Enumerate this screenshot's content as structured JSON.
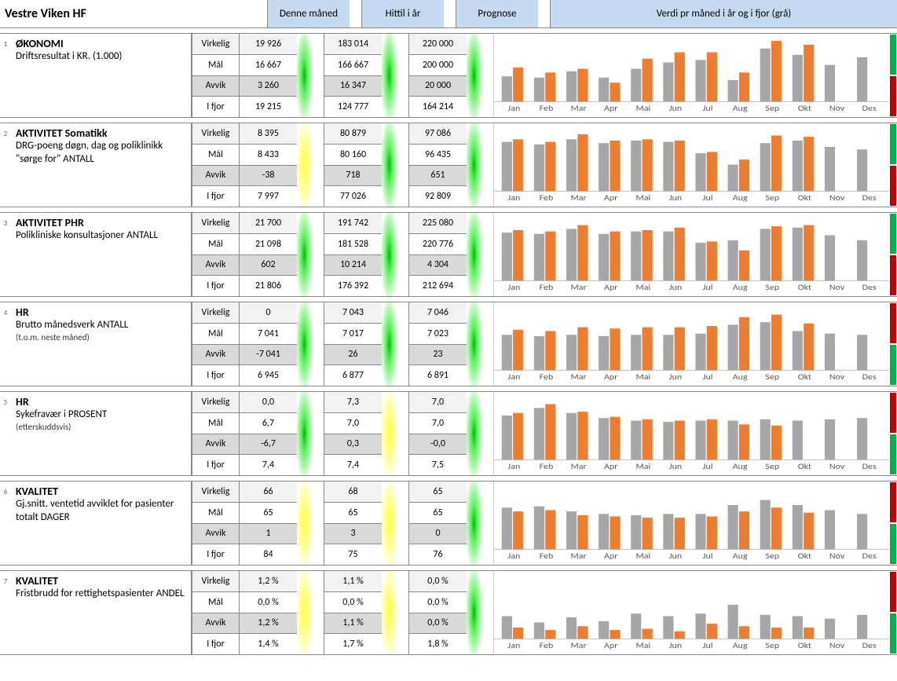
{
  "title": "Vestre Viken HF",
  "columns": {
    "month": "Denne måned",
    "year": "Hittil i år",
    "prognosis": "Prognose",
    "chart": "Verdi pr måned i år og i fjor (grå)"
  },
  "row_labels": {
    "virkelig": "Virkelig",
    "maal": "Mål",
    "avvik": "Avvik",
    "ifjor": "I fjor"
  },
  "chart_style": {
    "months": [
      "Jan",
      "Feb",
      "Mar",
      "Apr",
      "Mai",
      "Jun",
      "Jul",
      "Aug",
      "Sep",
      "Okt",
      "Nov",
      "Des"
    ],
    "bar_color_current": "#ed7d31",
    "bar_color_last": "#a6a6a6",
    "axis_color": "#bfbfbf",
    "label_color": "#595959",
    "label_fontsize": 10
  },
  "kpis": [
    {
      "num": "1",
      "title": "ØKONOMI",
      "subtitle": "Driftsresultat i KR. (1.000)",
      "sub2": "",
      "month": {
        "virkelig": "19 926",
        "maal": "16 667",
        "avvik": "3 260",
        "ifjor": "19 215",
        "status": "green"
      },
      "year": {
        "virkelig": "183 014",
        "maal": "166 667",
        "avvik": "16 347",
        "ifjor": "124 777",
        "status": "green"
      },
      "prognosis": {
        "virkelig": "220 000",
        "maal": "200 000",
        "avvik": "20 000",
        "ifjor": "164 214",
        "status": "green"
      },
      "flags": [
        "green",
        "red"
      ],
      "chart": {
        "last": [
          40,
          38,
          48,
          38,
          52,
          62,
          66,
          34,
          84,
          74,
          58,
          70
        ],
        "current": [
          54,
          46,
          52,
          30,
          68,
          78,
          78,
          46,
          96,
          90,
          0,
          0
        ]
      }
    },
    {
      "num": "2",
      "title": "AKTIVITET Somatikk",
      "subtitle": "DRG-poeng døgn, dag og poliklinikk \"sørge for\" ANTALL",
      "sub2": "",
      "month": {
        "virkelig": "8 395",
        "maal": "8 433",
        "avvik": "-38",
        "ifjor": "7 997",
        "status": "yellow"
      },
      "year": {
        "virkelig": "80 879",
        "maal": "80 160",
        "avvik": "718",
        "ifjor": "77 026",
        "status": "green"
      },
      "prognosis": {
        "virkelig": "97 086",
        "maal": "96 435",
        "avvik": "651",
        "ifjor": "92 809",
        "status": "green"
      },
      "flags": [
        "green",
        "red"
      ],
      "chart": {
        "last": [
          78,
          74,
          82,
          76,
          80,
          78,
          60,
          42,
          76,
          80,
          70,
          66
        ],
        "current": [
          82,
          78,
          90,
          80,
          82,
          80,
          62,
          50,
          88,
          86,
          0,
          0
        ]
      }
    },
    {
      "num": "3",
      "title": "AKTIVITET PHR",
      "subtitle": "Polikliniske konsultasjoner ANTALL",
      "sub2": "",
      "month": {
        "virkelig": "21 700",
        "maal": "21 098",
        "avvik": "602",
        "ifjor": "21 806",
        "status": "green"
      },
      "year": {
        "virkelig": "191 742",
        "maal": "181 528",
        "avvik": "10 214",
        "ifjor": "176 392",
        "status": "green"
      },
      "prognosis": {
        "virkelig": "225 080",
        "maal": "220 776",
        "avvik": "4 304",
        "ifjor": "212 694",
        "status": "green"
      },
      "flags": [
        "green",
        "red"
      ],
      "chart": {
        "last": [
          76,
          74,
          82,
          74,
          78,
          78,
          60,
          64,
          82,
          84,
          72,
          64
        ],
        "current": [
          80,
          78,
          88,
          78,
          80,
          84,
          62,
          48,
          86,
          88,
          0,
          0
        ]
      }
    },
    {
      "num": "4",
      "title": "HR",
      "subtitle": "Brutto månedsverk ANTALL",
      "sub2": "(t.o.m. neste måned)",
      "month": {
        "virkelig": "0",
        "maal": "7 041",
        "avvik": "-7 041",
        "ifjor": "6 945",
        "status": "green"
      },
      "year": {
        "virkelig": "7 043",
        "maal": "7 017",
        "avvik": "26",
        "ifjor": "6 877",
        "status": "green"
      },
      "prognosis": {
        "virkelig": "7 046",
        "maal": "7 023",
        "avvik": "23",
        "ifjor": "6 891",
        "status": "green"
      },
      "flags": [
        "red",
        "green"
      ],
      "chart": {
        "last": [
          56,
          54,
          56,
          54,
          56,
          56,
          58,
          72,
          76,
          62,
          58,
          56
        ],
        "current": [
          64,
          62,
          68,
          66,
          68,
          68,
          70,
          84,
          88,
          74,
          0,
          0
        ]
      }
    },
    {
      "num": "5",
      "title": "HR",
      "subtitle": "Sykefravær i PROSENT",
      "sub2": "(etterskuddsvis)",
      "month": {
        "virkelig": "0,0",
        "maal": "6,7",
        "avvik": "-6,7",
        "ifjor": "7,4",
        "status": "green"
      },
      "year": {
        "virkelig": "7,3",
        "maal": "7,0",
        "avvik": "0,3",
        "ifjor": "7,4",
        "status": "yellow"
      },
      "prognosis": {
        "virkelig": "7,0",
        "maal": "7,0",
        "avvik": "-0,0",
        "ifjor": "7,5",
        "status": "green"
      },
      "flags": [
        "red",
        "green"
      ],
      "chart": {
        "last": [
          70,
          82,
          74,
          66,
          62,
          60,
          62,
          62,
          64,
          62,
          64,
          66
        ],
        "current": [
          74,
          88,
          76,
          68,
          64,
          62,
          64,
          56,
          54,
          0,
          0,
          0
        ]
      }
    },
    {
      "num": "6",
      "title": "KVALITET",
      "subtitle": "Gj.snitt. ventetid avviklet for pasienter totalt DAGER",
      "sub2": "",
      "month": {
        "virkelig": "66",
        "maal": "65",
        "avvik": "1",
        "ifjor": "84",
        "status": "yellow"
      },
      "year": {
        "virkelig": "68",
        "maal": "65",
        "avvik": "3",
        "ifjor": "75",
        "status": "yellow"
      },
      "prognosis": {
        "virkelig": "65",
        "maal": "65",
        "avvik": "0",
        "ifjor": "76",
        "status": "green"
      },
      "flags": [
        "red",
        "green"
      ],
      "chart": {
        "last": [
          66,
          68,
          60,
          56,
          54,
          56,
          56,
          70,
          78,
          70,
          62,
          56
        ],
        "current": [
          60,
          62,
          54,
          52,
          50,
          50,
          52,
          60,
          66,
          58,
          0,
          0
        ]
      }
    },
    {
      "num": "7",
      "title": "KVALITET",
      "subtitle": "Fristbrudd for rettighetspasienter ANDEL",
      "sub2": "",
      "month": {
        "virkelig": "1,2 %",
        "maal": "0,0 %",
        "avvik": "1,2 %",
        "ifjor": "1,4 %",
        "status": "yellow"
      },
      "year": {
        "virkelig": "1,1 %",
        "maal": "0,0 %",
        "avvik": "1,1 %",
        "ifjor": "1,7 %",
        "status": "yellow"
      },
      "prognosis": {
        "virkelig": "0,0 %",
        "maal": "0,0 %",
        "avvik": "0,0 %",
        "ifjor": "1,8 %",
        "status": "green"
      },
      "flags": [
        "red",
        "green"
      ],
      "chart": {
        "last": [
          36,
          26,
          34,
          28,
          40,
          36,
          40,
          54,
          38,
          36,
          32,
          38
        ],
        "current": [
          18,
          14,
          20,
          14,
          16,
          12,
          24,
          20,
          18,
          18,
          0,
          0
        ]
      }
    }
  ]
}
